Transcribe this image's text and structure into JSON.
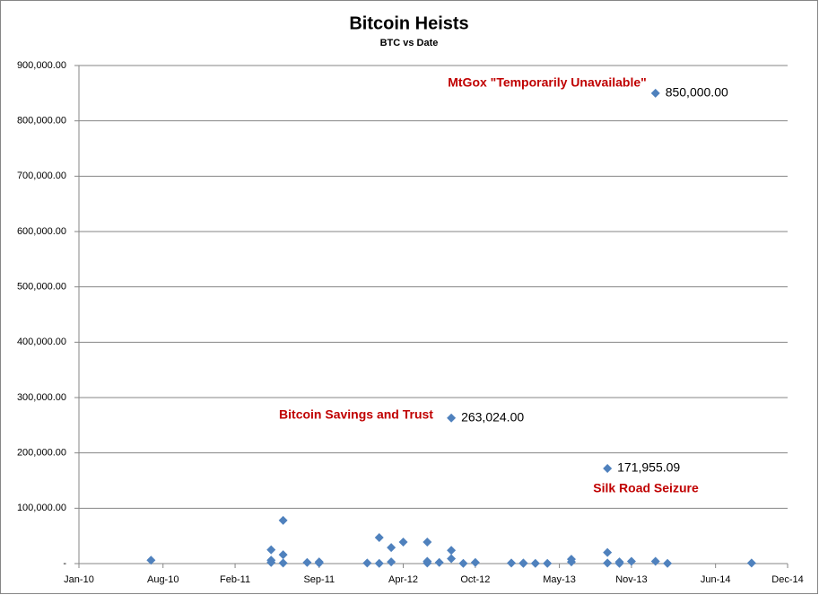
{
  "chart_data": {
    "type": "scatter",
    "title": "Bitcoin Heists",
    "subtitle": "BTC vs Date",
    "x": [
      "2010-07",
      "2011-05",
      "2011-05",
      "2011-05",
      "2011-06",
      "2011-06",
      "2011-06",
      "2011-08",
      "2011-09",
      "2011-09",
      "2012-01",
      "2012-02",
      "2012-02",
      "2012-03",
      "2012-03",
      "2012-04",
      "2012-06",
      "2012-06",
      "2012-06",
      "2012-07",
      "2012-08",
      "2012-08",
      "2012-08",
      "2012-09",
      "2012-10",
      "2013-01",
      "2013-02",
      "2013-02",
      "2013-03",
      "2013-04",
      "2013-06",
      "2013-06",
      "2013-09",
      "2013-09",
      "2013-09",
      "2013-10",
      "2013-10",
      "2013-11",
      "2014-01",
      "2014-01",
      "2014-02",
      "2014-09"
    ],
    "values": [
      6000,
      2000,
      6000,
      25000,
      78000,
      16000,
      1000,
      2000,
      3000,
      1000,
      1000,
      47000,
      500,
      29000,
      3000,
      39000,
      39000,
      4000,
      1000,
      2000,
      263024,
      24000,
      9000,
      500,
      2000,
      1000,
      1000,
      500,
      500,
      500,
      8000,
      3000,
      171955.09,
      20000,
      1000,
      3000,
      500,
      4000,
      850000,
      4000,
      500,
      1000
    ],
    "value_labels": [
      null,
      null,
      null,
      null,
      null,
      null,
      null,
      null,
      null,
      null,
      null,
      null,
      null,
      null,
      null,
      null,
      null,
      null,
      null,
      null,
      "263,024.00",
      null,
      null,
      null,
      null,
      null,
      null,
      null,
      null,
      null,
      null,
      null,
      "171,955.09",
      null,
      null,
      null,
      null,
      null,
      "850,000.00",
      null,
      null,
      null
    ],
    "color": "#4f81bd",
    "xlim": [
      "2010-01",
      "2014-12"
    ],
    "xticks": [
      {
        "value": "2010-01",
        "label": "Jan-10"
      },
      {
        "value": "2010-08",
        "label": "Aug-10"
      },
      {
        "value": "2011-02",
        "label": "Feb-11"
      },
      {
        "value": "2011-09",
        "label": "Sep-11"
      },
      {
        "value": "2012-04",
        "label": "Apr-12"
      },
      {
        "value": "2012-10",
        "label": "Oct-12"
      },
      {
        "value": "2013-05",
        "label": "May-13"
      },
      {
        "value": "2013-11",
        "label": "Nov-13"
      },
      {
        "value": "2014-06",
        "label": "Jun-14"
      },
      {
        "value": "2014-12",
        "label": "Dec-14"
      }
    ],
    "ylim": [
      0,
      900000
    ],
    "yticks": [
      {
        "value": 0,
        "label": "-"
      },
      {
        "value": 100000,
        "label": "100,000.00"
      },
      {
        "value": 200000,
        "label": "200,000.00"
      },
      {
        "value": 300000,
        "label": "300,000.00"
      },
      {
        "value": 400000,
        "label": "400,000.00"
      },
      {
        "value": 500000,
        "label": "500,000.00"
      },
      {
        "value": 600000,
        "label": "600,000.00"
      },
      {
        "value": 700000,
        "label": "700,000.00"
      },
      {
        "value": 800000,
        "label": "800,000.00"
      },
      {
        "value": 900000,
        "label": "900,000.00"
      }
    ],
    "grid": true,
    "annotations": [
      "MtGox  \"Temporarily Unavailable\"",
      "Bitcoin Savings and Trust",
      "Silk Road Seizure"
    ]
  }
}
